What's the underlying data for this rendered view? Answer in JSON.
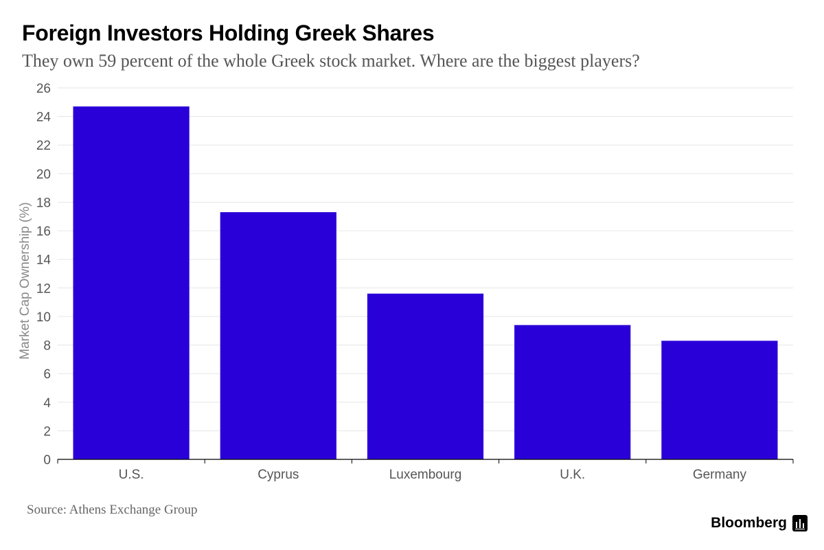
{
  "title": "Foreign Investors Holding Greek Shares",
  "subtitle": "They own 59 percent of the whole Greek stock market. Where are the biggest players?",
  "source": "Source: Athens Exchange Group",
  "logo": {
    "text": "Bloomberg",
    "icon": "bloomberg-terminal-icon"
  },
  "colors": {
    "bar": "#2a00d8",
    "grid": "#e6e6e6",
    "axis": "#000000",
    "tick_text": "#555555",
    "ylabel_text": "#888888"
  },
  "chart_data": {
    "type": "bar",
    "categories": [
      "U.S.",
      "Cyprus",
      "Luxembourg",
      "U.K.",
      "Germany"
    ],
    "values": [
      24.7,
      17.3,
      11.6,
      9.4,
      8.3
    ],
    "xlabel": "",
    "ylabel": "Market Cap Ownership (%)",
    "ylim": [
      0,
      26
    ],
    "yticks": [
      0,
      2,
      4,
      6,
      8,
      10,
      12,
      14,
      16,
      18,
      20,
      22,
      24,
      26
    ],
    "grid": true,
    "legend": "none"
  }
}
